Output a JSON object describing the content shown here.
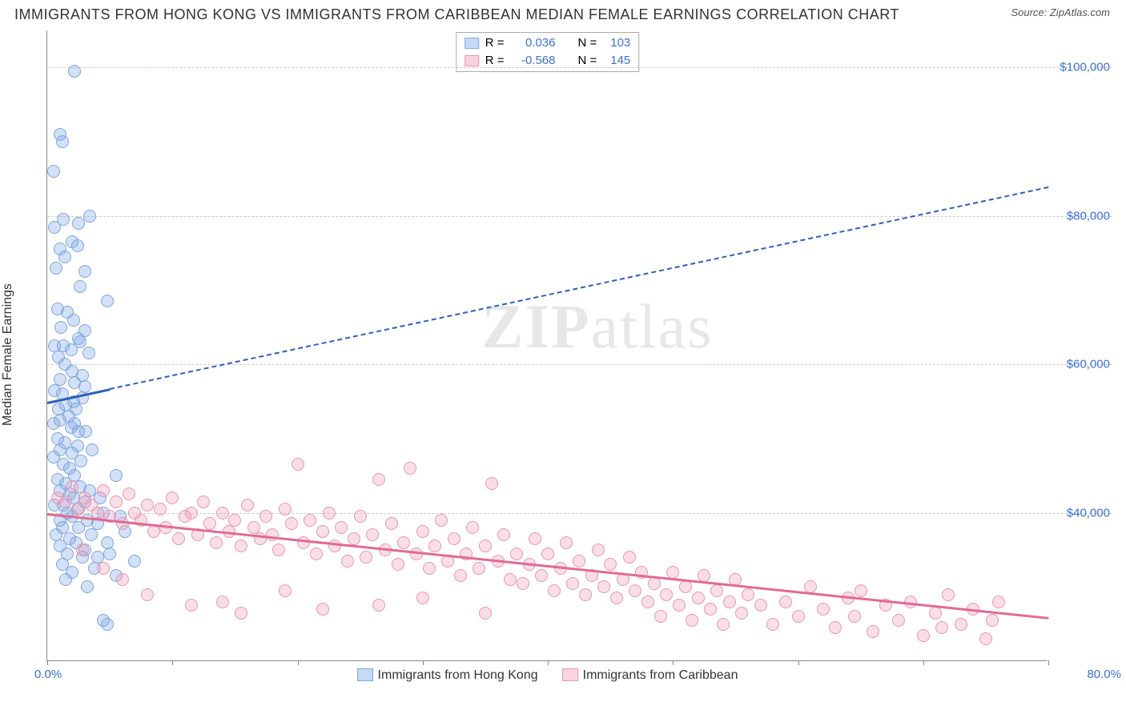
{
  "title": "IMMIGRANTS FROM HONG KONG VS IMMIGRANTS FROM CARIBBEAN MEDIAN FEMALE EARNINGS CORRELATION CHART",
  "source": "Source: ZipAtlas.com",
  "ylabel": "Median Female Earnings",
  "watermark": "ZIPatlas",
  "chart": {
    "type": "scatter",
    "background_color": "#ffffff",
    "grid_color": "#cccccc",
    "axis_color": "#888888",
    "xlim": [
      0,
      80
    ],
    "ylim": [
      20000,
      105000
    ],
    "yticks": [
      40000,
      60000,
      80000,
      100000
    ],
    "ytick_labels": [
      "$40,000",
      "$60,000",
      "$80,000",
      "$100,000"
    ],
    "xtick_positions": [
      0,
      10,
      20,
      30,
      40,
      50,
      60,
      70,
      80
    ],
    "xlim_labels": [
      "0.0%",
      "80.0%"
    ],
    "ytick_color": "#3b6fd8",
    "xtick_color": "#3b6fd8",
    "label_fontsize": 16,
    "tick_fontsize": 15,
    "title_fontsize": 18,
    "marker_radius": 8,
    "marker_stroke_width": 1
  },
  "series": [
    {
      "key": "hongkong",
      "label": "Immigrants from Hong Kong",
      "fill": "rgba(130,170,230,0.35)",
      "stroke": "#7ea5de",
      "trend_color": "#2b5fbf",
      "trend_dash_solid_x": [
        0,
        5
      ],
      "trend_dash_ext_x": [
        5,
        80
      ],
      "trend_y_at_x0": 55000,
      "trend_y_at_x80": 84000,
      "R": "0.036",
      "N": "103",
      "points": [
        [
          2.2,
          99500
        ],
        [
          1.0,
          91000
        ],
        [
          1.2,
          90000
        ],
        [
          0.5,
          86000
        ],
        [
          3.4,
          80000
        ],
        [
          1.3,
          79500
        ],
        [
          2.5,
          79000
        ],
        [
          0.6,
          78500
        ],
        [
          2.0,
          76500
        ],
        [
          2.4,
          76000
        ],
        [
          1.0,
          75500
        ],
        [
          1.4,
          74500
        ],
        [
          0.7,
          73000
        ],
        [
          3.0,
          72500
        ],
        [
          2.6,
          70500
        ],
        [
          4.8,
          68500
        ],
        [
          0.8,
          67500
        ],
        [
          1.6,
          67000
        ],
        [
          2.1,
          66000
        ],
        [
          1.1,
          65000
        ],
        [
          3.0,
          64500
        ],
        [
          2.5,
          63500
        ],
        [
          2.6,
          63000
        ],
        [
          1.3,
          62500
        ],
        [
          0.6,
          62500
        ],
        [
          1.9,
          62000
        ],
        [
          3.3,
          61500
        ],
        [
          0.9,
          61000
        ],
        [
          1.4,
          60000
        ],
        [
          2.0,
          59000
        ],
        [
          2.8,
          58500
        ],
        [
          1.0,
          58000
        ],
        [
          2.2,
          57500
        ],
        [
          3.0,
          57000
        ],
        [
          0.6,
          56500
        ],
        [
          1.2,
          56000
        ],
        [
          2.8,
          55500
        ],
        [
          2.1,
          55000
        ],
        [
          1.5,
          54500
        ],
        [
          2.3,
          54000
        ],
        [
          0.9,
          54000
        ],
        [
          1.7,
          53000
        ],
        [
          1.0,
          52500
        ],
        [
          2.2,
          52000
        ],
        [
          0.5,
          52000
        ],
        [
          1.9,
          51500
        ],
        [
          3.1,
          51000
        ],
        [
          2.5,
          51000
        ],
        [
          0.8,
          50000
        ],
        [
          1.4,
          49500
        ],
        [
          2.4,
          49000
        ],
        [
          3.6,
          48500
        ],
        [
          1.0,
          48500
        ],
        [
          2.0,
          48000
        ],
        [
          0.5,
          47500
        ],
        [
          2.7,
          47000
        ],
        [
          1.3,
          46500
        ],
        [
          1.8,
          46000
        ],
        [
          5.5,
          45000
        ],
        [
          2.2,
          45000
        ],
        [
          0.8,
          44500
        ],
        [
          1.5,
          44000
        ],
        [
          2.6,
          43500
        ],
        [
          3.4,
          43000
        ],
        [
          1.0,
          43000
        ],
        [
          1.8,
          42500
        ],
        [
          4.2,
          42000
        ],
        [
          2.1,
          42000
        ],
        [
          3.0,
          41500
        ],
        [
          0.6,
          41000
        ],
        [
          1.3,
          41000
        ],
        [
          2.4,
          40500
        ],
        [
          1.6,
          40000
        ],
        [
          4.5,
          40000
        ],
        [
          5.8,
          39500
        ],
        [
          2.0,
          39500
        ],
        [
          3.2,
          39000
        ],
        [
          1.0,
          39000
        ],
        [
          4.0,
          38500
        ],
        [
          2.5,
          38000
        ],
        [
          1.2,
          38000
        ],
        [
          6.2,
          37500
        ],
        [
          3.5,
          37000
        ],
        [
          0.7,
          37000
        ],
        [
          1.8,
          36500
        ],
        [
          4.8,
          36000
        ],
        [
          2.3,
          36000
        ],
        [
          1.0,
          35500
        ],
        [
          3.0,
          35000
        ],
        [
          5.0,
          34500
        ],
        [
          1.6,
          34500
        ],
        [
          2.8,
          34000
        ],
        [
          4.0,
          34000
        ],
        [
          7.0,
          33500
        ],
        [
          1.2,
          33000
        ],
        [
          3.8,
          32500
        ],
        [
          2.0,
          32000
        ],
        [
          5.5,
          31500
        ],
        [
          1.5,
          31000
        ],
        [
          3.2,
          30000
        ],
        [
          4.5,
          25500
        ],
        [
          4.8,
          25000
        ]
      ]
    },
    {
      "key": "caribbean",
      "label": "Immigrants from Caribbean",
      "fill": "rgba(240,160,185,0.35)",
      "stroke": "#e995b0",
      "trend_color": "#e36a92",
      "trend_x": [
        0,
        80
      ],
      "trend_y_at_x0": 40000,
      "trend_y_at_x80": 26000,
      "R": "-0.568",
      "N": "145",
      "points": [
        [
          0.8,
          42000
        ],
        [
          1.5,
          41500
        ],
        [
          2.0,
          43500
        ],
        [
          2.5,
          40500
        ],
        [
          3.0,
          42000
        ],
        [
          3.5,
          41000
        ],
        [
          4.0,
          40000
        ],
        [
          4.5,
          43000
        ],
        [
          5.0,
          39500
        ],
        [
          5.5,
          41500
        ],
        [
          6.0,
          38500
        ],
        [
          6.5,
          42500
        ],
        [
          7.0,
          40000
        ],
        [
          7.5,
          39000
        ],
        [
          8.0,
          41000
        ],
        [
          8.5,
          37500
        ],
        [
          9.0,
          40500
        ],
        [
          9.5,
          38000
        ],
        [
          10.0,
          42000
        ],
        [
          10.5,
          36500
        ],
        [
          11.0,
          39500
        ],
        [
          11.5,
          40000
        ],
        [
          12.0,
          37000
        ],
        [
          12.5,
          41500
        ],
        [
          13.0,
          38500
        ],
        [
          13.5,
          36000
        ],
        [
          14.0,
          40000
        ],
        [
          14.5,
          37500
        ],
        [
          15.0,
          39000
        ],
        [
          15.5,
          35500
        ],
        [
          16.0,
          41000
        ],
        [
          16.5,
          38000
        ],
        [
          17.0,
          36500
        ],
        [
          17.5,
          39500
        ],
        [
          18.0,
          37000
        ],
        [
          18.5,
          35000
        ],
        [
          19.0,
          40500
        ],
        [
          19.5,
          38500
        ],
        [
          20.0,
          46500
        ],
        [
          20.5,
          36000
        ],
        [
          21.0,
          39000
        ],
        [
          21.5,
          34500
        ],
        [
          22.0,
          37500
        ],
        [
          22.5,
          40000
        ],
        [
          23.0,
          35500
        ],
        [
          23.5,
          38000
        ],
        [
          24.0,
          33500
        ],
        [
          24.5,
          36500
        ],
        [
          25.0,
          39500
        ],
        [
          25.5,
          34000
        ],
        [
          26.0,
          37000
        ],
        [
          26.5,
          44500
        ],
        [
          27.0,
          35000
        ],
        [
          27.5,
          38500
        ],
        [
          28.0,
          33000
        ],
        [
          28.5,
          36000
        ],
        [
          29.0,
          46000
        ],
        [
          29.5,
          34500
        ],
        [
          30.0,
          37500
        ],
        [
          30.5,
          32500
        ],
        [
          31.0,
          35500
        ],
        [
          31.5,
          39000
        ],
        [
          32.0,
          33500
        ],
        [
          32.5,
          36500
        ],
        [
          33.0,
          31500
        ],
        [
          33.5,
          34500
        ],
        [
          34.0,
          38000
        ],
        [
          34.5,
          32500
        ],
        [
          35.0,
          35500
        ],
        [
          35.5,
          44000
        ],
        [
          36.0,
          33500
        ],
        [
          36.5,
          37000
        ],
        [
          37.0,
          31000
        ],
        [
          37.5,
          34500
        ],
        [
          38.0,
          30500
        ],
        [
          38.5,
          33000
        ],
        [
          39.0,
          36500
        ],
        [
          39.5,
          31500
        ],
        [
          40.0,
          34500
        ],
        [
          40.5,
          29500
        ],
        [
          41.0,
          32500
        ],
        [
          41.5,
          36000
        ],
        [
          42.0,
          30500
        ],
        [
          42.5,
          33500
        ],
        [
          43.0,
          29000
        ],
        [
          43.5,
          31500
        ],
        [
          44.0,
          35000
        ],
        [
          44.5,
          30000
        ],
        [
          45.0,
          33000
        ],
        [
          45.5,
          28500
        ],
        [
          46.0,
          31000
        ],
        [
          46.5,
          34000
        ],
        [
          47.0,
          29500
        ],
        [
          47.5,
          32000
        ],
        [
          48.0,
          28000
        ],
        [
          48.5,
          30500
        ],
        [
          49.0,
          26000
        ],
        [
          49.5,
          29000
        ],
        [
          50.0,
          32000
        ],
        [
          50.5,
          27500
        ],
        [
          51.0,
          30000
        ],
        [
          51.5,
          25500
        ],
        [
          52.0,
          28500
        ],
        [
          52.5,
          31500
        ],
        [
          53.0,
          27000
        ],
        [
          53.5,
          29500
        ],
        [
          54.0,
          25000
        ],
        [
          54.5,
          28000
        ],
        [
          55.0,
          31000
        ],
        [
          55.5,
          26500
        ],
        [
          56.0,
          29000
        ],
        [
          57.0,
          27500
        ],
        [
          58.0,
          25000
        ],
        [
          59.0,
          28000
        ],
        [
          60.0,
          26000
        ],
        [
          61.0,
          30000
        ],
        [
          62.0,
          27000
        ],
        [
          63.0,
          24500
        ],
        [
          64.0,
          28500
        ],
        [
          64.5,
          26000
        ],
        [
          65.0,
          29500
        ],
        [
          66.0,
          24000
        ],
        [
          67.0,
          27500
        ],
        [
          68.0,
          25500
        ],
        [
          69.0,
          28000
        ],
        [
          70.0,
          23500
        ],
        [
          71.0,
          26500
        ],
        [
          71.5,
          24500
        ],
        [
          72.0,
          29000
        ],
        [
          73.0,
          25000
        ],
        [
          74.0,
          27000
        ],
        [
          75.0,
          23000
        ],
        [
          75.5,
          25500
        ],
        [
          76.0,
          28000
        ],
        [
          15.5,
          26500
        ],
        [
          22.0,
          27000
        ],
        [
          26.5,
          27500
        ],
        [
          14.0,
          28000
        ],
        [
          19.0,
          29500
        ],
        [
          30.0,
          28500
        ],
        [
          35.0,
          26500
        ],
        [
          11.5,
          27500
        ],
        [
          8.0,
          29000
        ],
        [
          6.0,
          31000
        ],
        [
          4.5,
          32500
        ],
        [
          2.8,
          35000
        ]
      ]
    }
  ],
  "stats_box": {
    "rows": [
      {
        "sw_fill": "rgba(130,170,230,0.45)",
        "sw_stroke": "#7ea5de",
        "R_label": "R =",
        "R": "0.036",
        "N_label": "N =",
        "N": "103"
      },
      {
        "sw_fill": "rgba(240,160,185,0.45)",
        "sw_stroke": "#e995b0",
        "R_label": "R =",
        "R": "-0.568",
        "N_label": "N =",
        "N": "145"
      }
    ]
  },
  "legend": [
    {
      "sw_fill": "rgba(130,170,230,0.45)",
      "sw_stroke": "#7ea5de",
      "label": "Immigrants from Hong Kong"
    },
    {
      "sw_fill": "rgba(240,160,185,0.45)",
      "sw_stroke": "#e995b0",
      "label": "Immigrants from Caribbean"
    }
  ]
}
